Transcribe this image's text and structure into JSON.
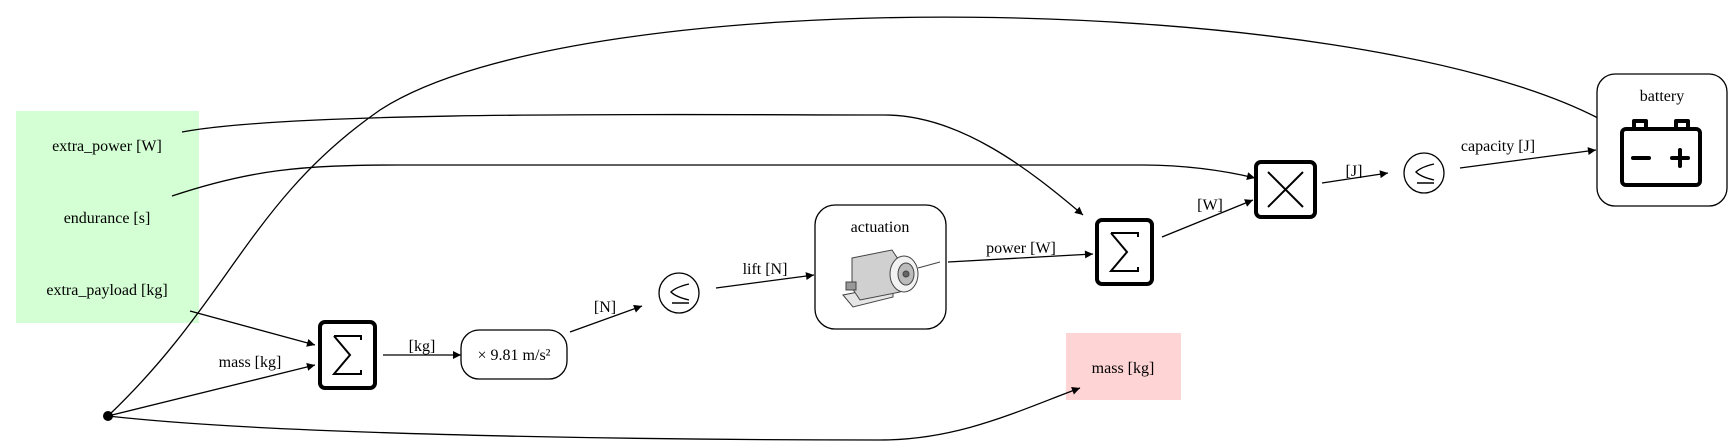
{
  "inputs": {
    "extra_power": "extra_power [W]",
    "endurance": "endurance [s]",
    "extra_payload": "extra_payload [kg]",
    "color": "#d4ffd4"
  },
  "outputs": {
    "mass": "mass [kg]",
    "color": "#ffd4d4"
  },
  "nodes": {
    "actuation": "actuation",
    "battery": "battery",
    "gravity": "× 9.81 m/s²"
  },
  "edges": {
    "mass_in": "mass [kg]",
    "kg": "[kg]",
    "newton": "[N]",
    "lift": "lift [N]",
    "power": "power [W]",
    "watt": "[W]",
    "joule": "[J]",
    "capacity": "capacity [J]"
  },
  "icons": {
    "sum": "summation-icon",
    "product": "multiply-icon",
    "constraint": "precedes-equal-icon",
    "battery": "battery-icon",
    "actuator": "actuator-drawing-icon"
  }
}
